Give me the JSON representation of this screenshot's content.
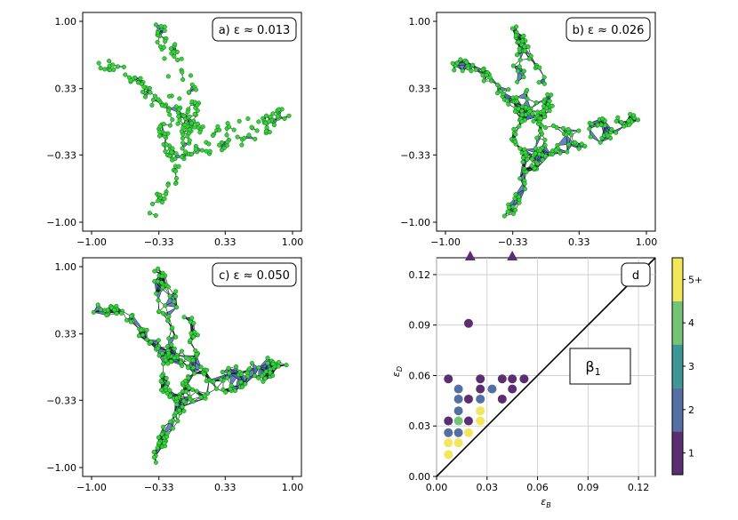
{
  "chart_data": [
    {
      "type": "scatter",
      "title": "a) ε ≈ 0.013",
      "panel_label": "a)",
      "epsilon_text": "ε ≈ 0.013",
      "x_ticks": [
        "−1.00",
        "−0.33",
        "0.33",
        "1.00"
      ],
      "y_ticks": [
        "1.00",
        "0.33",
        "−0.33",
        "−1.00"
      ],
      "xlim": [
        -1.0,
        1.0
      ],
      "ylim": [
        -1.0,
        1.0
      ],
      "density": 0.35
    },
    {
      "type": "scatter",
      "title": "b) ε ≈ 0.026",
      "panel_label": "b)",
      "epsilon_text": "ε ≈ 0.026",
      "x_ticks": [
        "−1.00",
        "−0.33",
        "0.33",
        "1.00"
      ],
      "y_ticks": [
        "1.00",
        "0.33",
        "−0.33",
        "−1.00"
      ],
      "xlim": [
        -1.0,
        1.0
      ],
      "ylim": [
        -1.0,
        1.0
      ],
      "density": 0.75
    },
    {
      "type": "scatter",
      "title": "c) ε ≈ 0.050",
      "panel_label": "c)",
      "epsilon_text": "ε ≈ 0.050",
      "x_ticks": [
        "−1.00",
        "−0.33",
        "0.33",
        "1.00"
      ],
      "y_ticks": [
        "1.00",
        "0.33",
        "−0.33",
        "−1.00"
      ],
      "xlim": [
        -1.0,
        1.0
      ],
      "ylim": [
        -1.0,
        1.0
      ],
      "density": 1.0
    },
    {
      "type": "scatter",
      "title": "d",
      "annotation": "β1",
      "annotation_base": "β",
      "annotation_sub": "1",
      "xlabel_base": "ε",
      "xlabel_sub": "B",
      "ylabel_base": "ε",
      "ylabel_sub": "D",
      "xlim": [
        0,
        0.13
      ],
      "ylim": [
        0,
        0.13
      ],
      "x_ticks": [
        0.0,
        0.03,
        0.06,
        0.09,
        0.12
      ],
      "y_ticks": [
        0.0,
        0.03,
        0.06,
        0.09,
        0.12
      ],
      "x_tick_labels": [
        "0.00",
        "0.03",
        "0.06",
        "0.09",
        "0.12"
      ],
      "y_tick_labels": [
        "0.00",
        "0.03",
        "0.06",
        "0.09",
        "0.12"
      ],
      "grid": true,
      "diagonal": true,
      "points": [
        {
          "x": 0.007,
          "y": 0.013,
          "m": 5
        },
        {
          "x": 0.007,
          "y": 0.02,
          "m": 5
        },
        {
          "x": 0.013,
          "y": 0.02,
          "m": 5
        },
        {
          "x": 0.007,
          "y": 0.026,
          "m": 2
        },
        {
          "x": 0.013,
          "y": 0.026,
          "m": 2
        },
        {
          "x": 0.019,
          "y": 0.026,
          "m": 5
        },
        {
          "x": 0.007,
          "y": 0.033,
          "m": 1
        },
        {
          "x": 0.013,
          "y": 0.033,
          "m": 4
        },
        {
          "x": 0.019,
          "y": 0.033,
          "m": 1
        },
        {
          "x": 0.026,
          "y": 0.033,
          "m": 5
        },
        {
          "x": 0.026,
          "y": 0.039,
          "m": 5
        },
        {
          "x": 0.013,
          "y": 0.039,
          "m": 2
        },
        {
          "x": 0.013,
          "y": 0.046,
          "m": 2
        },
        {
          "x": 0.019,
          "y": 0.046,
          "m": 1
        },
        {
          "x": 0.026,
          "y": 0.046,
          "m": 2
        },
        {
          "x": 0.039,
          "y": 0.046,
          "m": 1
        },
        {
          "x": 0.013,
          "y": 0.052,
          "m": 2
        },
        {
          "x": 0.026,
          "y": 0.052,
          "m": 1
        },
        {
          "x": 0.033,
          "y": 0.052,
          "m": 2
        },
        {
          "x": 0.045,
          "y": 0.052,
          "m": 1
        },
        {
          "x": 0.007,
          "y": 0.058,
          "m": 1
        },
        {
          "x": 0.026,
          "y": 0.058,
          "m": 1
        },
        {
          "x": 0.039,
          "y": 0.058,
          "m": 1
        },
        {
          "x": 0.045,
          "y": 0.058,
          "m": 1
        },
        {
          "x": 0.052,
          "y": 0.058,
          "m": 1
        },
        {
          "x": 0.019,
          "y": 0.091,
          "m": 1
        }
      ],
      "infinite_points_x": [
        0.02,
        0.045
      ],
      "colorbar": {
        "labels": [
          "1",
          "2",
          "3",
          "4",
          "5+"
        ],
        "colors": [
          "#5b2e72",
          "#5470a3",
          "#3c9796",
          "#74c476",
          "#f2e65a"
        ]
      }
    }
  ]
}
